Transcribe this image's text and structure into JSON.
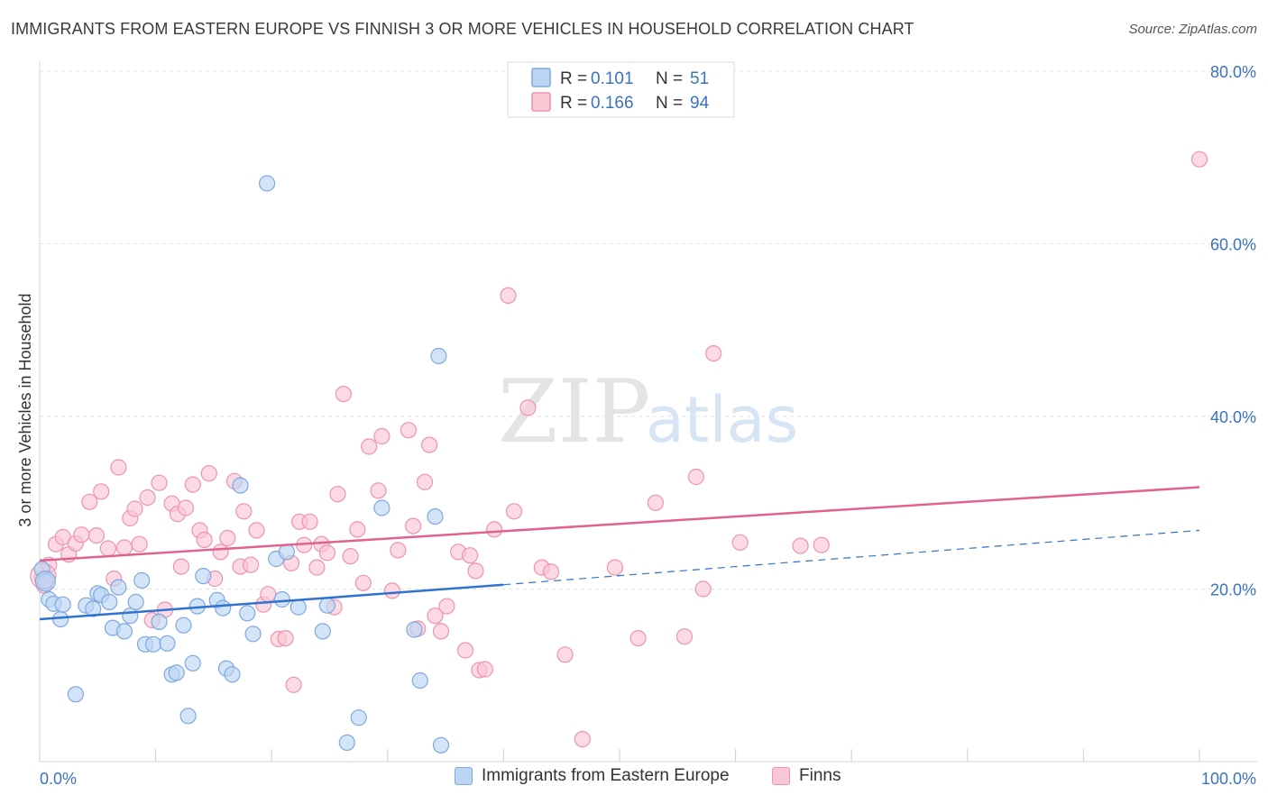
{
  "header": {
    "title": "IMMIGRANTS FROM EASTERN EUROPE VS FINNISH 3 OR MORE VEHICLES IN HOUSEHOLD CORRELATION CHART",
    "source": "Source: ZipAtlas.com"
  },
  "watermark": {
    "zip": "ZIP",
    "atlas": "atlas"
  },
  "colors": {
    "blue_fill": "#bcd5f5",
    "blue_stroke": "#7fa8de",
    "blue_line": "#2f72d0",
    "pink_fill": "#f9c6d4",
    "pink_stroke": "#ee93b0",
    "pink_line": "#e06290",
    "value_text": "#3a72c4"
  },
  "legend_top": {
    "r_label": "R =",
    "n_label": "N =",
    "rows": [
      {
        "series": "blue",
        "r": "0.101",
        "n": "51"
      },
      {
        "series": "pink",
        "r": "0.166",
        "n": "94"
      }
    ]
  },
  "legend_bottom": {
    "items": [
      {
        "series": "blue",
        "label": "Immigrants from Eastern Europe"
      },
      {
        "series": "pink",
        "label": "Finns"
      }
    ]
  },
  "chart_data": {
    "type": "scatter",
    "title": "IMMIGRANTS FROM EASTERN EUROPE VS FINNISH 3 OR MORE VEHICLES IN HOUSEHOLD CORRELATION CHART",
    "xlabel": "",
    "ylabel": "3 or more Vehicles in Household",
    "xlim": [
      0,
      100
    ],
    "ylim": [
      0,
      80
    ],
    "x_tick_labels": [
      {
        "value": 0,
        "label": "0.0%"
      },
      {
        "value": 100,
        "label": "100.0%"
      }
    ],
    "y_tick_labels": [
      {
        "value": 20,
        "label": "20.0%"
      },
      {
        "value": 40,
        "label": "40.0%"
      },
      {
        "value": 60,
        "label": "60.0%"
      },
      {
        "value": 80,
        "label": "80.0%"
      }
    ],
    "series": [
      {
        "name": "Immigrants from Eastern Europe",
        "color": "blue",
        "r": 0.101,
        "n": 51,
        "trend": {
          "x0": 0,
          "y0": 16.5,
          "x1": 40,
          "y1": 20.5,
          "dash_to_x": 100,
          "dash_to_y": 26.8
        },
        "points": [
          [
            0.2,
            22.3
          ],
          [
            0.5,
            20.9
          ],
          [
            0.8,
            18.8
          ],
          [
            1.2,
            18.3
          ],
          [
            1.8,
            16.5
          ],
          [
            2.0,
            18.2
          ],
          [
            3.1,
            7.8
          ],
          [
            4.0,
            18.1
          ],
          [
            4.6,
            17.7
          ],
          [
            5.0,
            19.5
          ],
          [
            5.3,
            19.3
          ],
          [
            6.0,
            18.5
          ],
          [
            6.3,
            15.5
          ],
          [
            6.8,
            20.2
          ],
          [
            7.3,
            15.1
          ],
          [
            7.8,
            16.9
          ],
          [
            8.3,
            18.5
          ],
          [
            8.8,
            21.0
          ],
          [
            9.1,
            13.6
          ],
          [
            9.8,
            13.6
          ],
          [
            10.3,
            16.2
          ],
          [
            11.0,
            13.7
          ],
          [
            11.4,
            10.1
          ],
          [
            11.8,
            10.3
          ],
          [
            12.4,
            15.8
          ],
          [
            12.8,
            5.3
          ],
          [
            13.2,
            11.4
          ],
          [
            13.6,
            18.0
          ],
          [
            14.1,
            21.5
          ],
          [
            15.3,
            18.7
          ],
          [
            15.8,
            17.8
          ],
          [
            16.1,
            10.8
          ],
          [
            16.6,
            10.1
          ],
          [
            17.3,
            32.0
          ],
          [
            17.9,
            17.2
          ],
          [
            18.4,
            14.8
          ],
          [
            19.6,
            67.0
          ],
          [
            20.4,
            23.5
          ],
          [
            20.9,
            18.8
          ],
          [
            21.3,
            24.3
          ],
          [
            22.3,
            17.9
          ],
          [
            24.4,
            15.1
          ],
          [
            24.8,
            18.1
          ],
          [
            26.5,
            2.2
          ],
          [
            27.5,
            5.1
          ],
          [
            29.5,
            29.4
          ],
          [
            32.3,
            15.3
          ],
          [
            32.8,
            9.4
          ],
          [
            34.1,
            28.4
          ],
          [
            34.6,
            1.9
          ],
          [
            34.4,
            47.0
          ]
        ]
      },
      {
        "name": "Finns",
        "color": "pink",
        "r": 0.166,
        "n": 94,
        "trend": {
          "x0": 0,
          "y0": 23.3,
          "x1": 100,
          "y1": 31.8
        },
        "points": [
          [
            0.2,
            21.3
          ],
          [
            0.4,
            20.4
          ],
          [
            0.8,
            22.8
          ],
          [
            1.4,
            25.2
          ],
          [
            2.0,
            26.0
          ],
          [
            2.5,
            24.0
          ],
          [
            3.1,
            25.3
          ],
          [
            3.6,
            26.3
          ],
          [
            4.3,
            30.1
          ],
          [
            4.9,
            26.2
          ],
          [
            5.3,
            31.3
          ],
          [
            5.9,
            24.7
          ],
          [
            6.4,
            21.2
          ],
          [
            6.8,
            34.1
          ],
          [
            7.3,
            24.8
          ],
          [
            7.8,
            28.2
          ],
          [
            8.2,
            29.3
          ],
          [
            8.6,
            25.2
          ],
          [
            9.3,
            30.6
          ],
          [
            9.7,
            16.4
          ],
          [
            10.3,
            32.3
          ],
          [
            10.8,
            17.6
          ],
          [
            11.4,
            29.9
          ],
          [
            11.9,
            28.7
          ],
          [
            12.2,
            22.6
          ],
          [
            12.6,
            29.4
          ],
          [
            13.2,
            32.1
          ],
          [
            13.8,
            26.8
          ],
          [
            14.2,
            25.7
          ],
          [
            14.6,
            33.4
          ],
          [
            15.1,
            21.2
          ],
          [
            15.6,
            24.3
          ],
          [
            16.2,
            25.9
          ],
          [
            16.8,
            32.5
          ],
          [
            17.3,
            22.6
          ],
          [
            17.6,
            29.0
          ],
          [
            18.2,
            22.8
          ],
          [
            18.7,
            26.8
          ],
          [
            19.3,
            18.2
          ],
          [
            19.7,
            19.4
          ],
          [
            20.6,
            14.2
          ],
          [
            21.2,
            14.3
          ],
          [
            21.7,
            23.0
          ],
          [
            21.9,
            8.9
          ],
          [
            22.4,
            27.8
          ],
          [
            22.8,
            25.1
          ],
          [
            23.3,
            27.8
          ],
          [
            23.9,
            22.5
          ],
          [
            24.3,
            25.2
          ],
          [
            24.8,
            24.2
          ],
          [
            25.4,
            17.9
          ],
          [
            25.7,
            31.0
          ],
          [
            26.2,
            42.6
          ],
          [
            26.8,
            23.8
          ],
          [
            27.4,
            26.9
          ],
          [
            27.9,
            20.7
          ],
          [
            28.4,
            36.5
          ],
          [
            29.2,
            31.4
          ],
          [
            29.5,
            37.7
          ],
          [
            30.4,
            19.8
          ],
          [
            30.9,
            24.5
          ],
          [
            31.8,
            38.4
          ],
          [
            32.2,
            27.3
          ],
          [
            32.6,
            15.4
          ],
          [
            33.2,
            32.4
          ],
          [
            33.6,
            36.7
          ],
          [
            34.1,
            16.9
          ],
          [
            34.6,
            15.1
          ],
          [
            35.1,
            18.0
          ],
          [
            36.1,
            24.3
          ],
          [
            36.7,
            12.9
          ],
          [
            37.1,
            23.9
          ],
          [
            37.6,
            22.1
          ],
          [
            37.9,
            10.6
          ],
          [
            38.4,
            10.7
          ],
          [
            39.2,
            26.9
          ],
          [
            40.4,
            54.0
          ],
          [
            40.9,
            29.0
          ],
          [
            42.1,
            41.0
          ],
          [
            43.3,
            22.5
          ],
          [
            44.1,
            22.0
          ],
          [
            45.3,
            12.4
          ],
          [
            46.8,
            2.6
          ],
          [
            49.6,
            22.5
          ],
          [
            51.6,
            14.3
          ],
          [
            53.1,
            30.0
          ],
          [
            55.6,
            14.5
          ],
          [
            56.6,
            33.0
          ],
          [
            57.2,
            20.0
          ],
          [
            58.1,
            47.3
          ],
          [
            60.4,
            25.4
          ],
          [
            65.6,
            25.0
          ],
          [
            67.4,
            25.1
          ],
          [
            100.0,
            69.8
          ]
        ]
      }
    ],
    "grid": true,
    "legend_position": "top-center"
  }
}
